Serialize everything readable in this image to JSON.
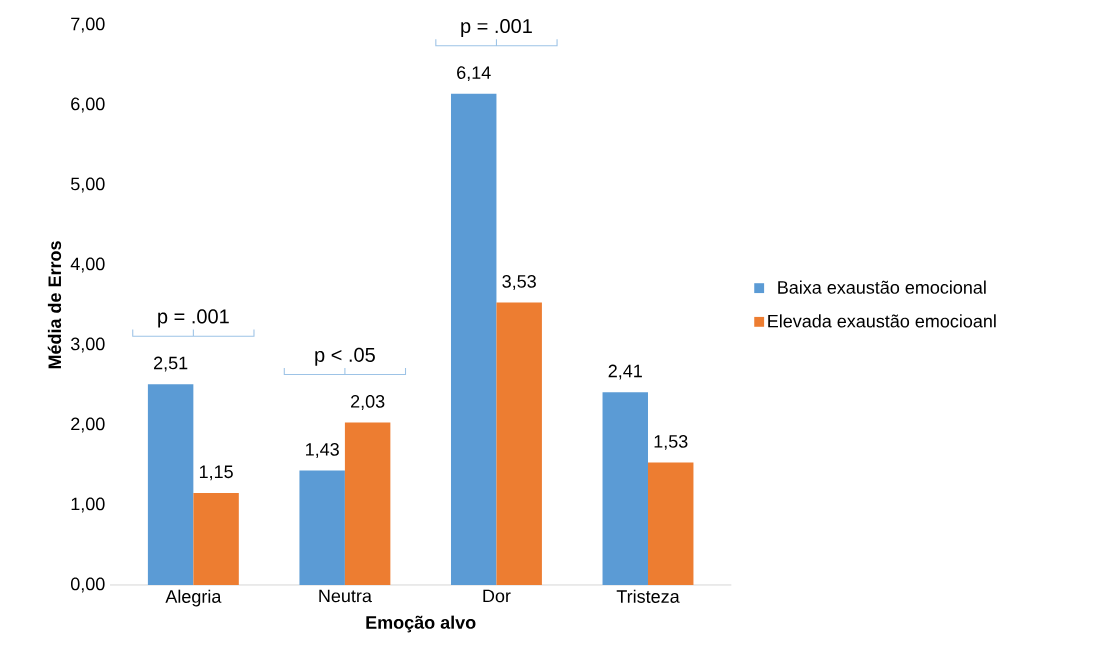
{
  "chart_data": {
    "type": "bar",
    "xlabel": "Emoção alvo",
    "ylabel": "Média de Erros",
    "categories": [
      "Alegria",
      "Neutra",
      "Dor",
      "Tristeza"
    ],
    "series": [
      {
        "name": "Baixa exaustão emocional",
        "color": "#5b9bd5",
        "values": [
          2.51,
          1.43,
          6.14,
          2.41
        ],
        "value_labels": [
          "2,51",
          "1,43",
          "6,14",
          "2,41"
        ]
      },
      {
        "name": "Elevada exaustão emocioanl",
        "color": "#ed7d31",
        "values": [
          1.15,
          2.03,
          3.53,
          1.53
        ],
        "value_labels": [
          "1,15",
          "2,03",
          "3,53",
          "1,53"
        ]
      }
    ],
    "ylim": [
      0,
      7
    ],
    "yticks": [
      {
        "value": 0,
        "label": "0,00"
      },
      {
        "value": 1,
        "label": "1,00"
      },
      {
        "value": 2,
        "label": "2,00"
      },
      {
        "value": 3,
        "label": "3,00"
      },
      {
        "value": 4,
        "label": "4,00"
      },
      {
        "value": 5,
        "label": "5,00"
      },
      {
        "value": 6,
        "label": "6,00"
      },
      {
        "value": 7,
        "label": "7,00"
      }
    ],
    "annotations": [
      "p = .001",
      "p < .05",
      "p = .001"
    ],
    "grid": false,
    "legend": "right"
  }
}
